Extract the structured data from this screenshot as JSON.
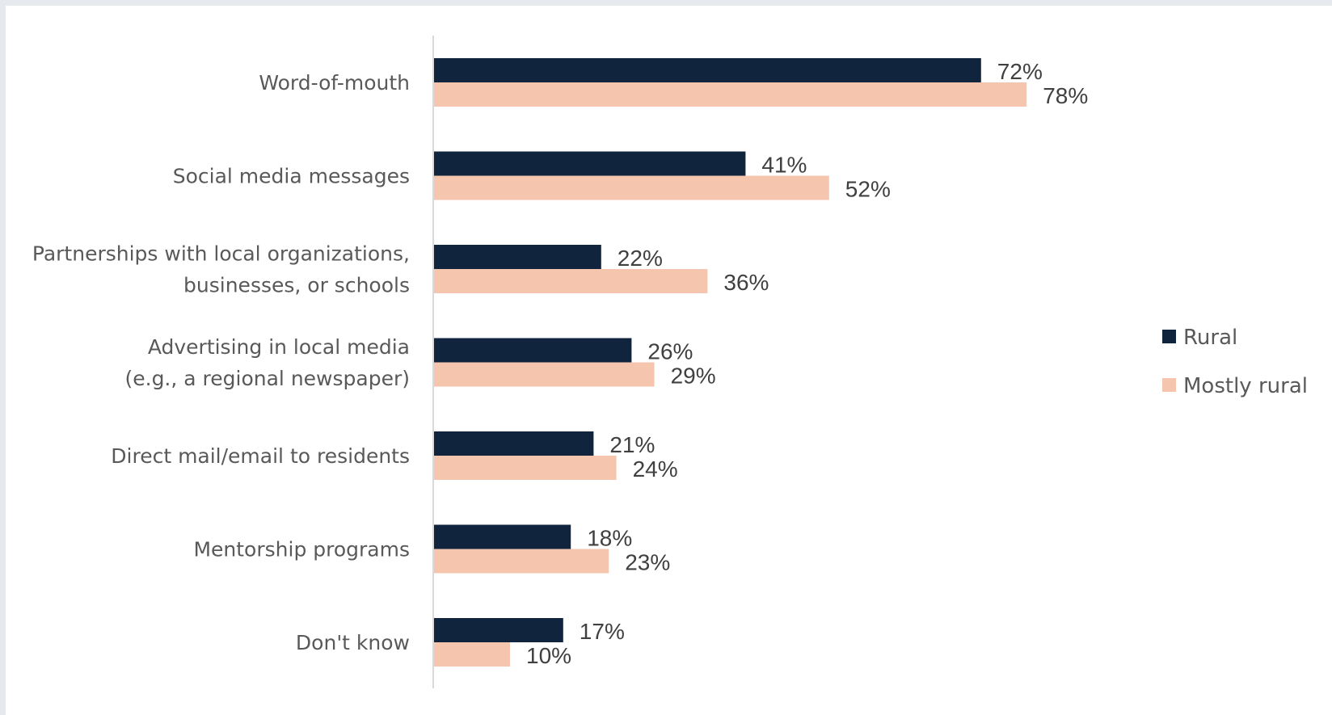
{
  "chart_data": {
    "type": "bar",
    "orientation": "horizontal",
    "categories": [
      [
        "Word-of-mouth"
      ],
      [
        "Social media messages"
      ],
      [
        "Partnerships with local organizations,",
        "businesses, or schools"
      ],
      [
        "Advertising in local media",
        "(e.g., a regional newspaper)"
      ],
      [
        "Direct mail/email to residents"
      ],
      [
        "Mentorship programs"
      ],
      [
        "Don't know"
      ]
    ],
    "series": [
      {
        "name": "Rural",
        "color": "#10243e",
        "values": [
          72,
          41,
          22,
          26,
          21,
          18,
          17
        ],
        "labels": [
          "72%",
          "41%",
          "22%",
          "26%",
          "21%",
          "18%",
          "17%"
        ]
      },
      {
        "name": "Mostly rural",
        "color": "#f5c6ad",
        "values": [
          78,
          52,
          36,
          29,
          24,
          23,
          10
        ],
        "labels": [
          "78%",
          "52%",
          "36%",
          "29%",
          "24%",
          "23%",
          "10%"
        ]
      }
    ],
    "value_format": "percent",
    "xlim": [
      0,
      100
    ],
    "grid": false,
    "legend_position": "right",
    "axis_color": "#d9d9d9"
  }
}
